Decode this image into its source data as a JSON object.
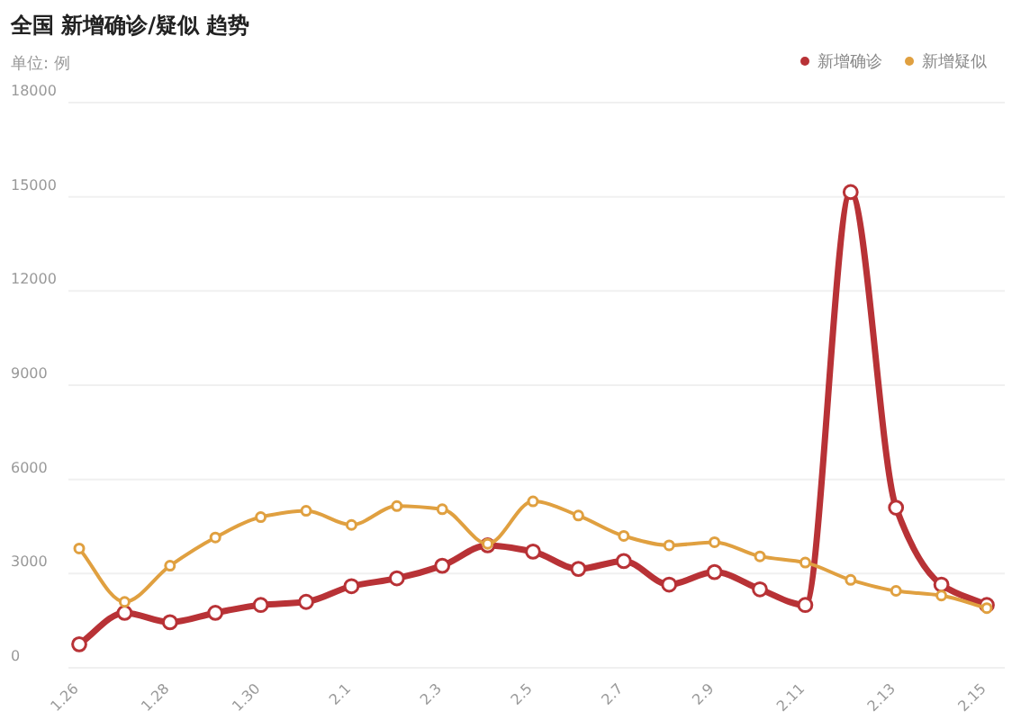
{
  "chart_data": {
    "type": "line",
    "title": "全国 新增确诊/疑似 趋势",
    "subtitle": "单位: 例",
    "categories": [
      "1.26",
      null,
      "1.28",
      null,
      "1.30",
      null,
      "2.1",
      null,
      "2.3",
      null,
      "2.5",
      null,
      "2.7",
      null,
      "2.9",
      null,
      "2.11",
      null,
      "2.13",
      null,
      "2.15"
    ],
    "series": [
      {
        "name": "新增确诊",
        "color": "#b83236",
        "values": [
          750,
          1750,
          1450,
          1750,
          2000,
          2100,
          2600,
          2850,
          3250,
          3900,
          3700,
          3150,
          3400,
          2650,
          3050,
          2500,
          2000,
          15150,
          5100,
          2650,
          2000
        ]
      },
      {
        "name": "新增疑似",
        "color": "#e0a040",
        "values": [
          3800,
          2100,
          3250,
          4150,
          4800,
          5000,
          4550,
          5150,
          5050,
          3950,
          5300,
          4850,
          4200,
          3900,
          4000,
          3550,
          3350,
          2800,
          2450,
          2300,
          1900
        ]
      }
    ],
    "ylim": [
      0,
      18000
    ],
    "yticks": [
      0,
      3000,
      6000,
      9000,
      12000,
      15000,
      18000
    ],
    "grid": "y",
    "legend": "top right",
    "marker": "circle",
    "line_style": "solid"
  }
}
